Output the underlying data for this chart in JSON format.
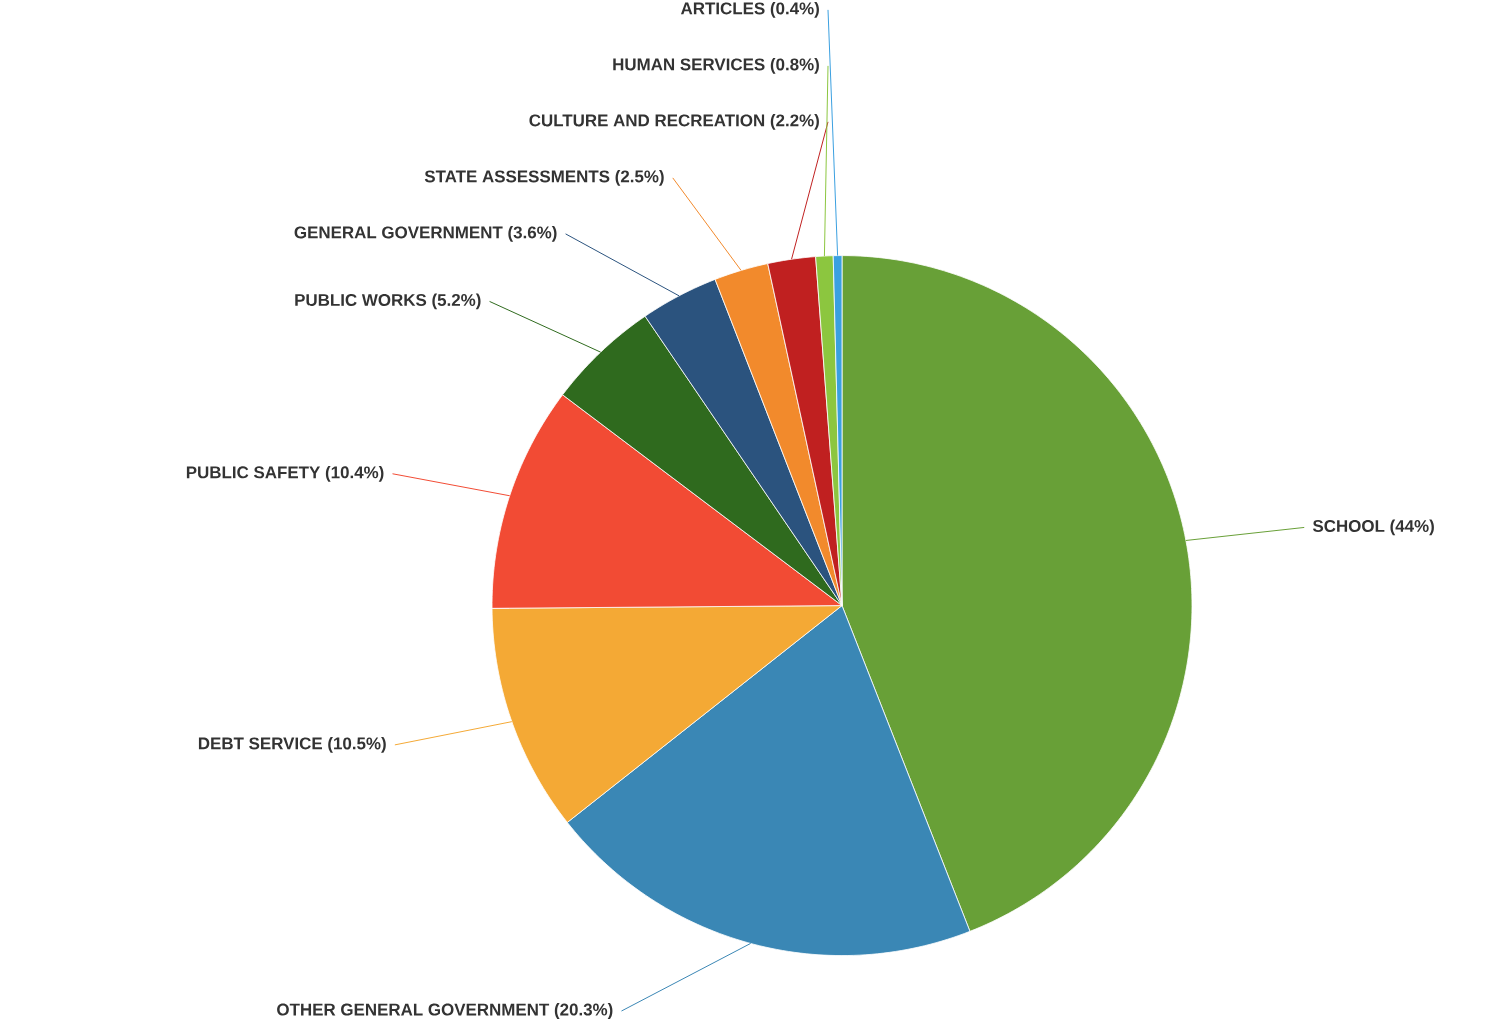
{
  "chart_data": {
    "type": "pie",
    "categories": [
      "SCHOOL",
      "OTHER GENERAL GOVERNMENT",
      "DEBT SERVICE",
      "PUBLIC SAFETY",
      "PUBLIC WORKS",
      "GENERAL GOVERNMENT",
      "STATE ASSESSMENTS",
      "CULTURE AND RECREATION",
      "HUMAN SERVICES",
      "ARTICLES"
    ],
    "values": [
      44,
      20.3,
      10.5,
      10.4,
      5.2,
      3.6,
      2.5,
      2.2,
      0.8,
      0.4
    ],
    "value_labels": [
      "(44%)",
      "(20.3%)",
      "(10.5%)",
      "(10.4%)",
      "(5.2%)",
      "(3.6%)",
      "(2.5%)",
      "(2.2%)",
      "(0.8%)",
      "(0.4%)"
    ],
    "colors": [
      "#68a037",
      "#3a87b5",
      "#f4a935",
      "#f24b34",
      "#2f6a1e",
      "#2b537e",
      "#f28a2c",
      "#c02020",
      "#8cc63f",
      "#3aa0e0"
    ]
  }
}
